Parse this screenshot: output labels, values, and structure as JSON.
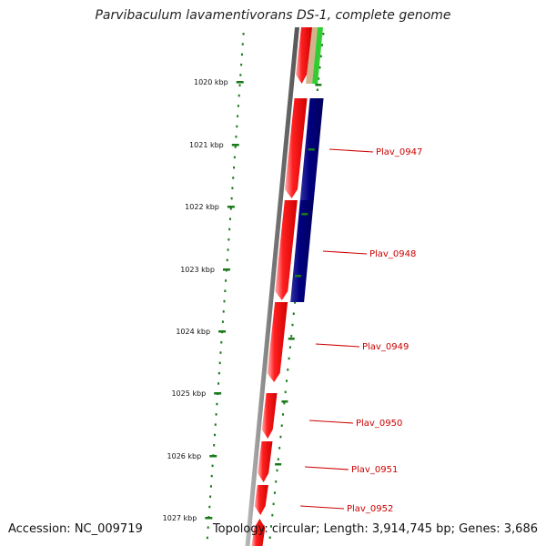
{
  "title": "Parvibaculum lavamentivorans DS-1, complete genome",
  "footer": {
    "accession": "Accession: NC_009719",
    "stats": "Topology: circular; Length: 3,914,745 bp; Genes: 3,686"
  },
  "scale_labels": [
    "1020 kbp",
    "1021 kbp",
    "1022 kbp",
    "1023 kbp",
    "1024 kbp",
    "1025 kbp",
    "1026 kbp",
    "1027 kbp"
  ],
  "gene_labels": [
    "Plav_0947",
    "Plav_0948",
    "Plav_0949",
    "Plav_0950",
    "Plav_0951",
    "Plav_0952"
  ],
  "colors": {
    "forward_gene": "#ff0000",
    "reverse_gene": "#000080",
    "tick": "#1a7a1a",
    "genome_axis": "#777777",
    "gene_label": "#cc0000",
    "label_line": "#cc0000",
    "green_feature": "#33cc33",
    "tan_feature": "#d2b48c"
  }
}
